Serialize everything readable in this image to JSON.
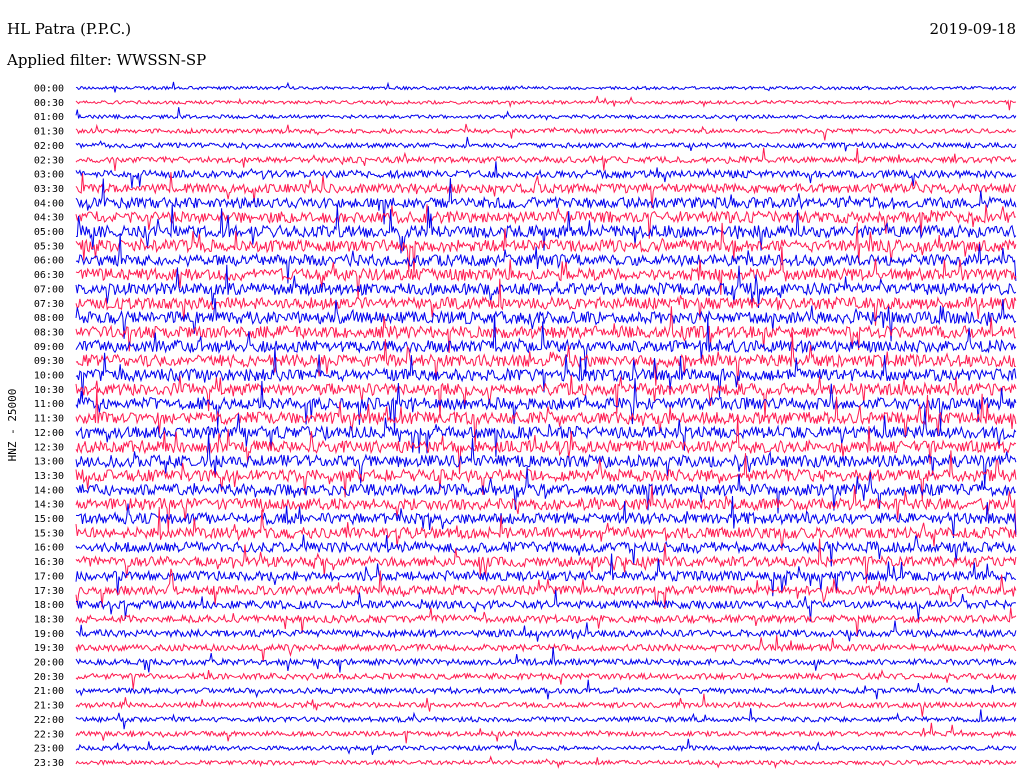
{
  "header": {
    "station": "HL Patra (P.P.C.)",
    "filter": "Applied filter: WWSSN-SP",
    "date": "2019-09-18"
  },
  "colors": {
    "trace_even": "#0000ee",
    "trace_odd": "#ff1a50",
    "text": "#000000",
    "background": "#ffffff"
  },
  "chart_data": {
    "type": "helicorder",
    "ylabel": "HNZ - 25000",
    "row_labels": [
      "00:00",
      "00:30",
      "01:00",
      "01:30",
      "02:00",
      "02:30",
      "03:00",
      "03:30",
      "04:00",
      "04:30",
      "05:00",
      "05:30",
      "06:00",
      "06:30",
      "07:00",
      "07:30",
      "08:00",
      "08:30",
      "09:00",
      "09:30",
      "10:00",
      "10:30",
      "11:00",
      "11:30",
      "12:00",
      "12:30",
      "13:00",
      "13:30",
      "14:00",
      "14:30",
      "15:00",
      "15:30",
      "16:00",
      "16:30",
      "17:00",
      "17:30",
      "18:00",
      "18:30",
      "19:00",
      "19:30",
      "20:00",
      "20:30",
      "21:00",
      "21:30",
      "22:00",
      "22:30",
      "23:00",
      "23:30"
    ],
    "row_minutes": 30,
    "line_colors": [
      "blue",
      "red"
    ],
    "relative_activity": [
      0.12,
      0.14,
      0.16,
      0.25,
      0.3,
      0.4,
      0.55,
      0.7,
      0.85,
      0.95,
      1.0,
      1.0,
      0.95,
      1.0,
      1.0,
      1.0,
      1.0,
      1.0,
      1.0,
      1.0,
      1.0,
      1.0,
      1.0,
      1.0,
      1.0,
      1.0,
      1.0,
      1.0,
      0.95,
      0.95,
      0.9,
      0.9,
      0.85,
      0.8,
      0.75,
      0.7,
      0.6,
      0.55,
      0.5,
      0.45,
      0.4,
      0.38,
      0.35,
      0.32,
      0.3,
      0.28,
      0.25,
      0.22
    ]
  }
}
